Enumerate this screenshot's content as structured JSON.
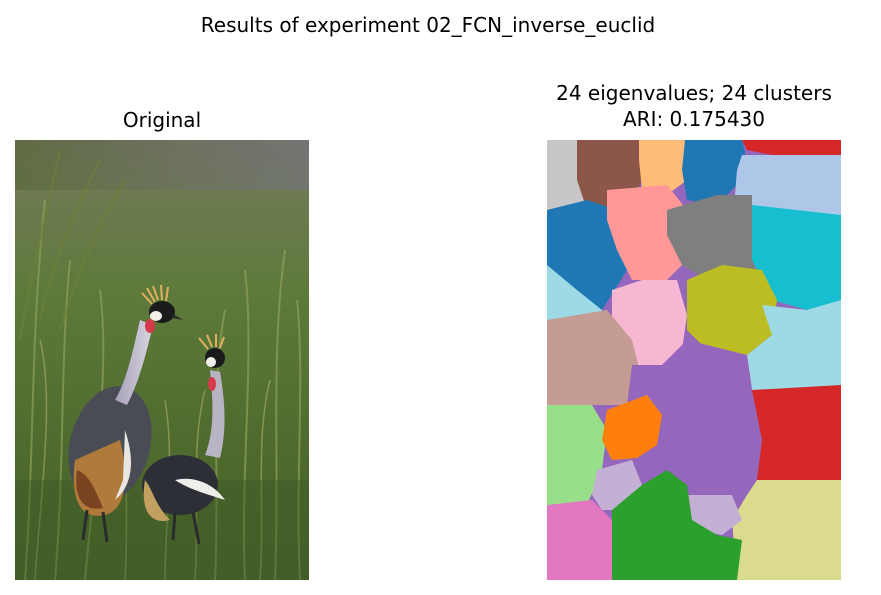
{
  "figure": {
    "suptitle": "Results of experiment 02_FCN_inverse_euclid"
  },
  "panels": {
    "original": {
      "title": "Original",
      "image_subject": "two grey crowned cranes standing in tall green grass"
    },
    "segmentation": {
      "title_line1": "24 eigenvalues; 24 clusters",
      "title_line2": "ARI: 0.175430",
      "num_clusters": 24,
      "ari": 0.17543
    }
  },
  "colors": {
    "tab20": [
      "#1f77b4",
      "#aec7e8",
      "#ff7f0e",
      "#ffbb78",
      "#2ca02c",
      "#98df8a",
      "#d62728",
      "#ff9896",
      "#9467bd",
      "#c5b0d5",
      "#8c564b",
      "#c49c94",
      "#e377c2",
      "#f7b6d2",
      "#7f7f7f",
      "#c7c7c7",
      "#bcbd22",
      "#dbdb8d",
      "#17becf",
      "#9edae5"
    ]
  }
}
